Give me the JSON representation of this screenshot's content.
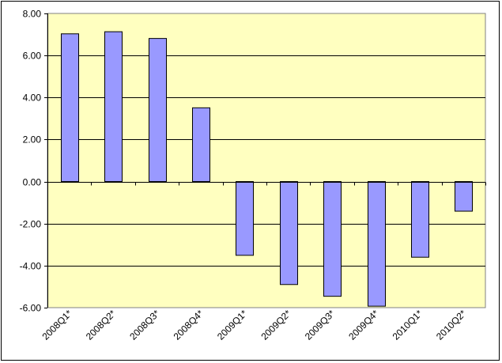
{
  "chart_data": {
    "type": "bar",
    "title": "",
    "xlabel": "",
    "ylabel": "",
    "categories": [
      "2008Q1*",
      "2008Q2*",
      "2008Q3*",
      "2008Q4*",
      "2009Q1*",
      "2009Q2*",
      "2009Q3*",
      "2009Q4*",
      "2010Q1*",
      "2010Q2*"
    ],
    "values": [
      7.03,
      7.13,
      6.81,
      3.51,
      -3.51,
      -4.9,
      -5.46,
      -5.93,
      -3.6,
      -1.41
    ],
    "ylim": [
      -6.0,
      8.0
    ],
    "yticks": [
      "8.00",
      "6.00",
      "4.00",
      "2.00",
      "0.00",
      "-2.00",
      "-4.00",
      "-6.00"
    ],
    "ytick_values": [
      8,
      6,
      4,
      2,
      0,
      -2,
      -4,
      -6
    ],
    "grid": true,
    "legend": "none",
    "colors": {
      "plot_background": "#ffffc0",
      "bar_fill": "#9999ff",
      "bar_stroke": "#000000",
      "gridline": "#000000"
    }
  }
}
